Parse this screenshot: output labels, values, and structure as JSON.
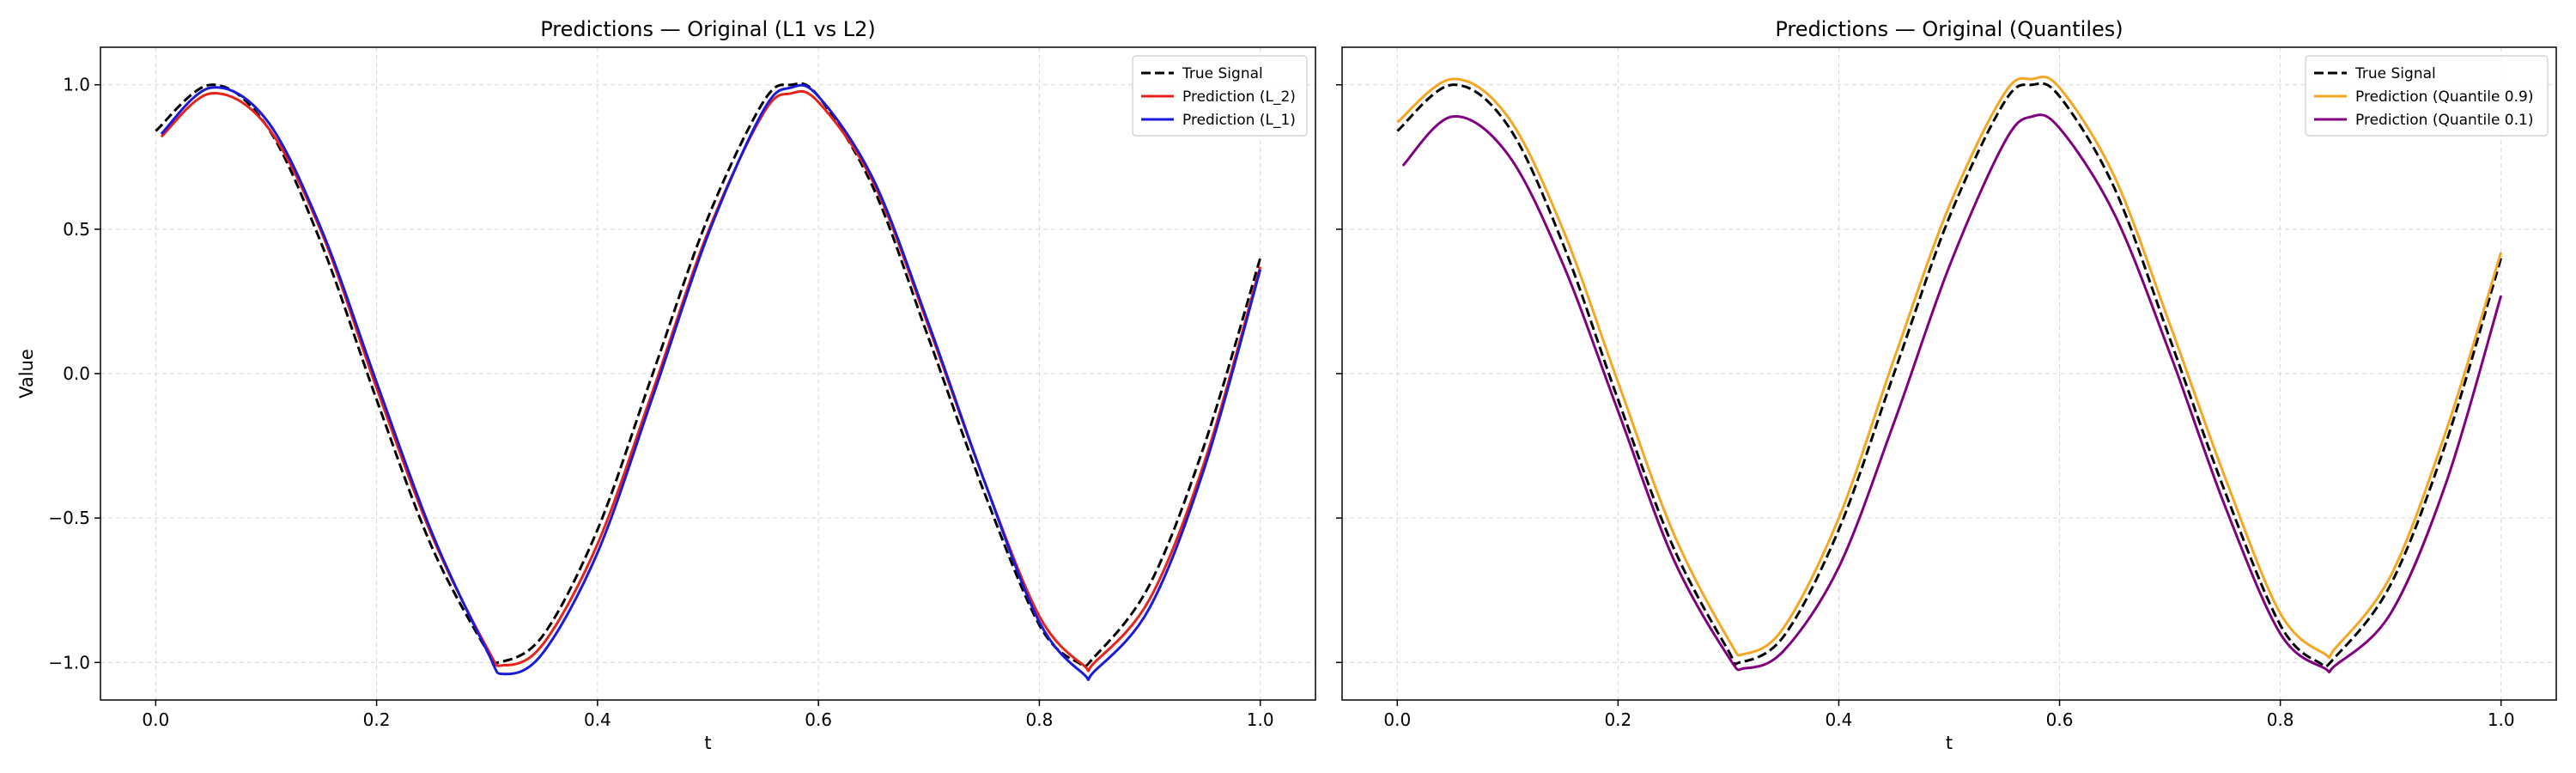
{
  "chart_data": [
    {
      "type": "line",
      "title": "Predictions — Original (L1 vs L2)",
      "xlabel": "t",
      "ylabel": "Value",
      "xlim": [
        -0.05,
        1.05
      ],
      "ylim": [
        -1.13,
        1.13
      ],
      "xticks": [
        "0.0",
        "0.2",
        "0.4",
        "0.6",
        "0.8",
        "1.0"
      ],
      "yticks": [
        "1.0",
        "0.5",
        "0.0",
        "−0.5",
        "−1.0"
      ],
      "grid": true,
      "legend_position": "top-right",
      "series": [
        {
          "name": "True Signal",
          "color": "#000000",
          "style": "dashed",
          "x": [
            0.0,
            0.05,
            0.1,
            0.15,
            0.2,
            0.25,
            0.3,
            0.31,
            0.35,
            0.4,
            0.45,
            0.5,
            0.55,
            0.575,
            0.6,
            0.65,
            0.7,
            0.75,
            0.8,
            0.835,
            0.85,
            0.9,
            0.95,
            1.0
          ],
          "y": [
            0.84,
            1.0,
            0.86,
            0.45,
            -0.09,
            -0.6,
            -0.96,
            -1.0,
            -0.91,
            -0.54,
            0.0,
            0.54,
            0.94,
            1.0,
            0.96,
            0.64,
            0.12,
            -0.41,
            -0.87,
            -1.0,
            -0.98,
            -0.73,
            -0.24,
            0.4
          ]
        },
        {
          "name": "Prediction (L_2)",
          "color": "#e8231b",
          "style": "solid",
          "x": [
            0.005,
            0.05,
            0.1,
            0.15,
            0.2,
            0.25,
            0.3,
            0.315,
            0.35,
            0.4,
            0.45,
            0.5,
            0.55,
            0.575,
            0.6,
            0.65,
            0.7,
            0.75,
            0.8,
            0.84,
            0.85,
            0.9,
            0.95,
            1.0
          ],
          "y": [
            0.82,
            0.97,
            0.86,
            0.49,
            -0.05,
            -0.56,
            -0.95,
            -1.01,
            -0.94,
            -0.59,
            -0.06,
            0.49,
            0.9,
            0.97,
            0.94,
            0.66,
            0.16,
            -0.37,
            -0.84,
            -1.01,
            -1.0,
            -0.78,
            -0.3,
            0.37
          ]
        },
        {
          "name": "Prediction (L_1)",
          "color": "#1a1adb",
          "style": "solid",
          "x": [
            0.005,
            0.05,
            0.1,
            0.15,
            0.2,
            0.25,
            0.3,
            0.315,
            0.35,
            0.4,
            0.45,
            0.5,
            0.55,
            0.575,
            0.6,
            0.65,
            0.7,
            0.75,
            0.8,
            0.84,
            0.85,
            0.9,
            0.95,
            1.0
          ],
          "y": [
            0.83,
            0.99,
            0.88,
            0.5,
            -0.03,
            -0.55,
            -0.96,
            -1.04,
            -0.97,
            -0.62,
            -0.08,
            0.48,
            0.91,
            0.99,
            0.96,
            0.67,
            0.17,
            -0.37,
            -0.86,
            -1.04,
            -1.03,
            -0.81,
            -0.32,
            0.36
          ]
        }
      ]
    },
    {
      "type": "line",
      "title": "Predictions — Original (Quantiles)",
      "xlabel": "t",
      "xlim": [
        -0.05,
        1.05
      ],
      "ylim": [
        -1.13,
        1.13
      ],
      "xticks": [
        "0.0",
        "0.2",
        "0.4",
        "0.6",
        "0.8",
        "1.0"
      ],
      "grid": true,
      "legend_position": "top-right",
      "series": [
        {
          "name": "True Signal",
          "color": "#000000",
          "style": "dashed",
          "x": [
            0.0,
            0.05,
            0.1,
            0.15,
            0.2,
            0.25,
            0.3,
            0.31,
            0.35,
            0.4,
            0.45,
            0.5,
            0.55,
            0.575,
            0.6,
            0.65,
            0.7,
            0.75,
            0.8,
            0.835,
            0.85,
            0.9,
            0.95,
            1.0
          ],
          "y": [
            0.84,
            1.0,
            0.86,
            0.45,
            -0.09,
            -0.6,
            -0.96,
            -1.0,
            -0.91,
            -0.54,
            0.0,
            0.54,
            0.94,
            1.0,
            0.96,
            0.64,
            0.12,
            -0.41,
            -0.87,
            -1.0,
            -0.98,
            -0.73,
            -0.24,
            0.4
          ]
        },
        {
          "name": "Prediction (Quantile 0.9)",
          "color": "#f5a623",
          "style": "solid",
          "x": [
            0.0,
            0.05,
            0.1,
            0.15,
            0.2,
            0.25,
            0.3,
            0.315,
            0.35,
            0.4,
            0.45,
            0.5,
            0.55,
            0.575,
            0.6,
            0.65,
            0.7,
            0.75,
            0.8,
            0.84,
            0.85,
            0.9,
            0.95,
            1.0
          ],
          "y": [
            0.87,
            1.02,
            0.89,
            0.5,
            -0.03,
            -0.55,
            -0.92,
            -0.97,
            -0.88,
            -0.5,
            0.05,
            0.58,
            0.97,
            1.02,
            0.99,
            0.68,
            0.17,
            -0.36,
            -0.83,
            -0.97,
            -0.95,
            -0.7,
            -0.2,
            0.42
          ]
        },
        {
          "name": "Prediction (Quantile 0.1)",
          "color": "#800080",
          "style": "solid",
          "x": [
            0.005,
            0.05,
            0.1,
            0.15,
            0.2,
            0.25,
            0.3,
            0.315,
            0.35,
            0.4,
            0.45,
            0.5,
            0.55,
            0.575,
            0.6,
            0.65,
            0.7,
            0.75,
            0.8,
            0.84,
            0.85,
            0.9,
            0.95,
            1.0
          ],
          "y": [
            0.72,
            0.89,
            0.76,
            0.38,
            -0.13,
            -0.64,
            -0.98,
            -1.02,
            -0.96,
            -0.67,
            -0.17,
            0.37,
            0.8,
            0.89,
            0.85,
            0.55,
            0.07,
            -0.46,
            -0.9,
            -1.02,
            -1.01,
            -0.83,
            -0.38,
            0.27
          ]
        }
      ]
    }
  ]
}
